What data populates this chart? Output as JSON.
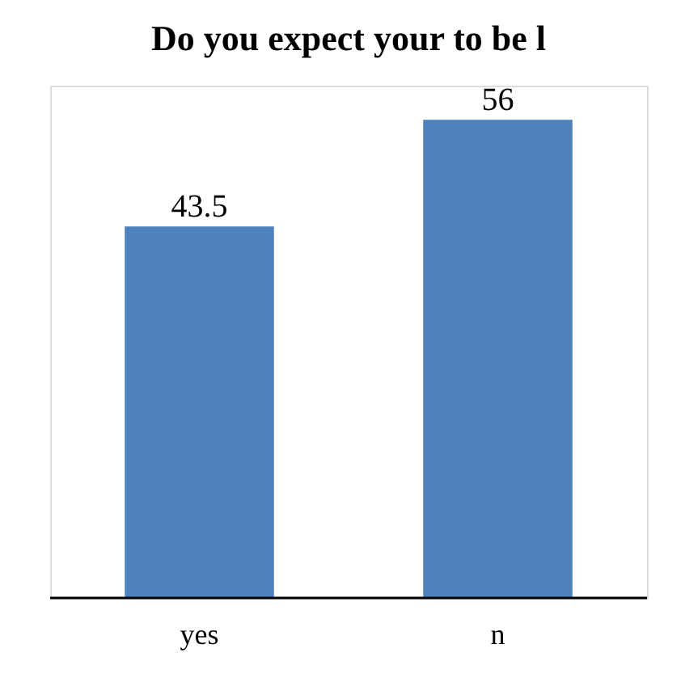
{
  "chart_data": {
    "type": "bar",
    "title": "Do you expect your to be l",
    "categories": [
      "yes",
      "n"
    ],
    "values": [
      43.5,
      56
    ],
    "color": "#4f81bd",
    "ylim": [
      0,
      60
    ],
    "data_labels": true,
    "tick_labels": "x",
    "grid": false
  }
}
